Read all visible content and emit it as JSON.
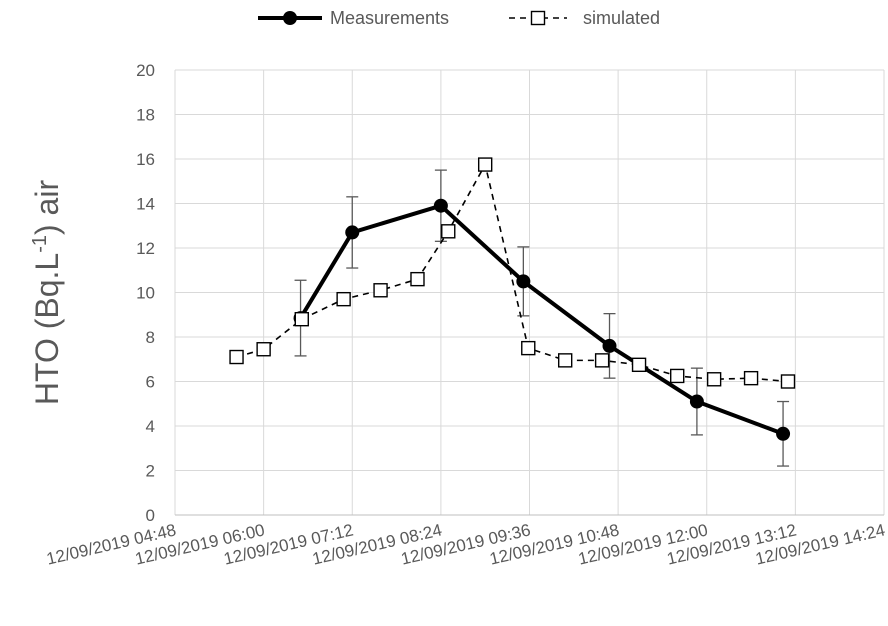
{
  "chart_data": {
    "type": "line",
    "title": "",
    "xlabel": "",
    "ylabel": {
      "prefix": "HTO (Bq.L",
      "superscript": "-1",
      "suffix": ") air"
    },
    "x_axis": {
      "min": "12/09/2019 04:48",
      "max": "12/09/2019 14:24",
      "tick_labels": [
        "12/09/2019 04:48",
        "12/09/2019 06:00",
        "12/09/2019 07:12",
        "12/09/2019 08:24",
        "12/09/2019 09:36",
        "12/09/2019 10:48",
        "12/09/2019 12:00",
        "12/09/2019 13:12",
        "12/09/2019 14:24"
      ]
    },
    "y_axis": {
      "min": 0,
      "max": 20,
      "tick_labels": [
        "0",
        "2",
        "4",
        "6",
        "8",
        "10",
        "12",
        "14",
        "16",
        "18",
        "20"
      ]
    },
    "grid": "vertical and horizontal",
    "legend": {
      "position": "top-center"
    },
    "series": [
      {
        "name": "Measurements",
        "style": "solid",
        "marker": "filled-circle",
        "color": "#000000",
        "points": [
          {
            "x": "12/09/2019 06:30",
            "y": 8.85,
            "err": 1.7
          },
          {
            "x": "12/09/2019 07:12",
            "y": 12.7,
            "err": 1.6
          },
          {
            "x": "12/09/2019 08:24",
            "y": 13.9,
            "err": 1.6
          },
          {
            "x": "12/09/2019 09:31",
            "y": 10.5,
            "err": 1.55
          },
          {
            "x": "12/09/2019 10:41",
            "y": 7.6,
            "err": 1.45
          },
          {
            "x": "12/09/2019 11:52",
            "y": 5.1,
            "err": 1.5
          },
          {
            "x": "12/09/2019 13:02",
            "y": 3.65,
            "err": 1.45
          }
        ]
      },
      {
        "name": "simulated",
        "style": "dashed",
        "marker": "open-square",
        "color": "#000000",
        "points": [
          {
            "x": "12/09/2019 05:38",
            "y": 7.1
          },
          {
            "x": "12/09/2019 06:00",
            "y": 7.45
          },
          {
            "x": "12/09/2019 06:31",
            "y": 8.8
          },
          {
            "x": "12/09/2019 07:05",
            "y": 9.7
          },
          {
            "x": "12/09/2019 07:35",
            "y": 10.1
          },
          {
            "x": "12/09/2019 08:05",
            "y": 10.6
          },
          {
            "x": "12/09/2019 08:30",
            "y": 12.75
          },
          {
            "x": "12/09/2019 09:00",
            "y": 15.75
          },
          {
            "x": "12/09/2019 09:35",
            "y": 7.5
          },
          {
            "x": "12/09/2019 10:05",
            "y": 6.95
          },
          {
            "x": "12/09/2019 10:35",
            "y": 6.95
          },
          {
            "x": "12/09/2019 11:05",
            "y": 6.75
          },
          {
            "x": "12/09/2019 11:36",
            "y": 6.25
          },
          {
            "x": "12/09/2019 12:06",
            "y": 6.1
          },
          {
            "x": "12/09/2019 12:36",
            "y": 6.15
          },
          {
            "x": "12/09/2019 13:06",
            "y": 6.0
          }
        ]
      }
    ]
  }
}
